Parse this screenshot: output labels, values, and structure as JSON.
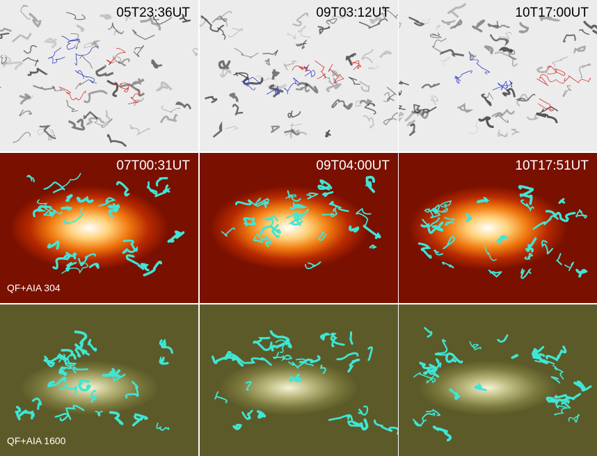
{
  "rows": [
    {
      "panels": [
        {
          "time": "05T23:36UT"
        },
        {
          "time": "09T03:12UT"
        },
        {
          "time": "10T17:00UT"
        }
      ]
    },
    {
      "label": "QF+AIA 304",
      "panels": [
        {
          "time": "07T00:31UT"
        },
        {
          "time": "09T04:00UT"
        },
        {
          "time": "10T17:51UT"
        }
      ]
    },
    {
      "label": "QF+AIA 1600",
      "panels": [
        {
          "time": ""
        },
        {
          "time": ""
        },
        {
          "time": ""
        }
      ]
    }
  ]
}
